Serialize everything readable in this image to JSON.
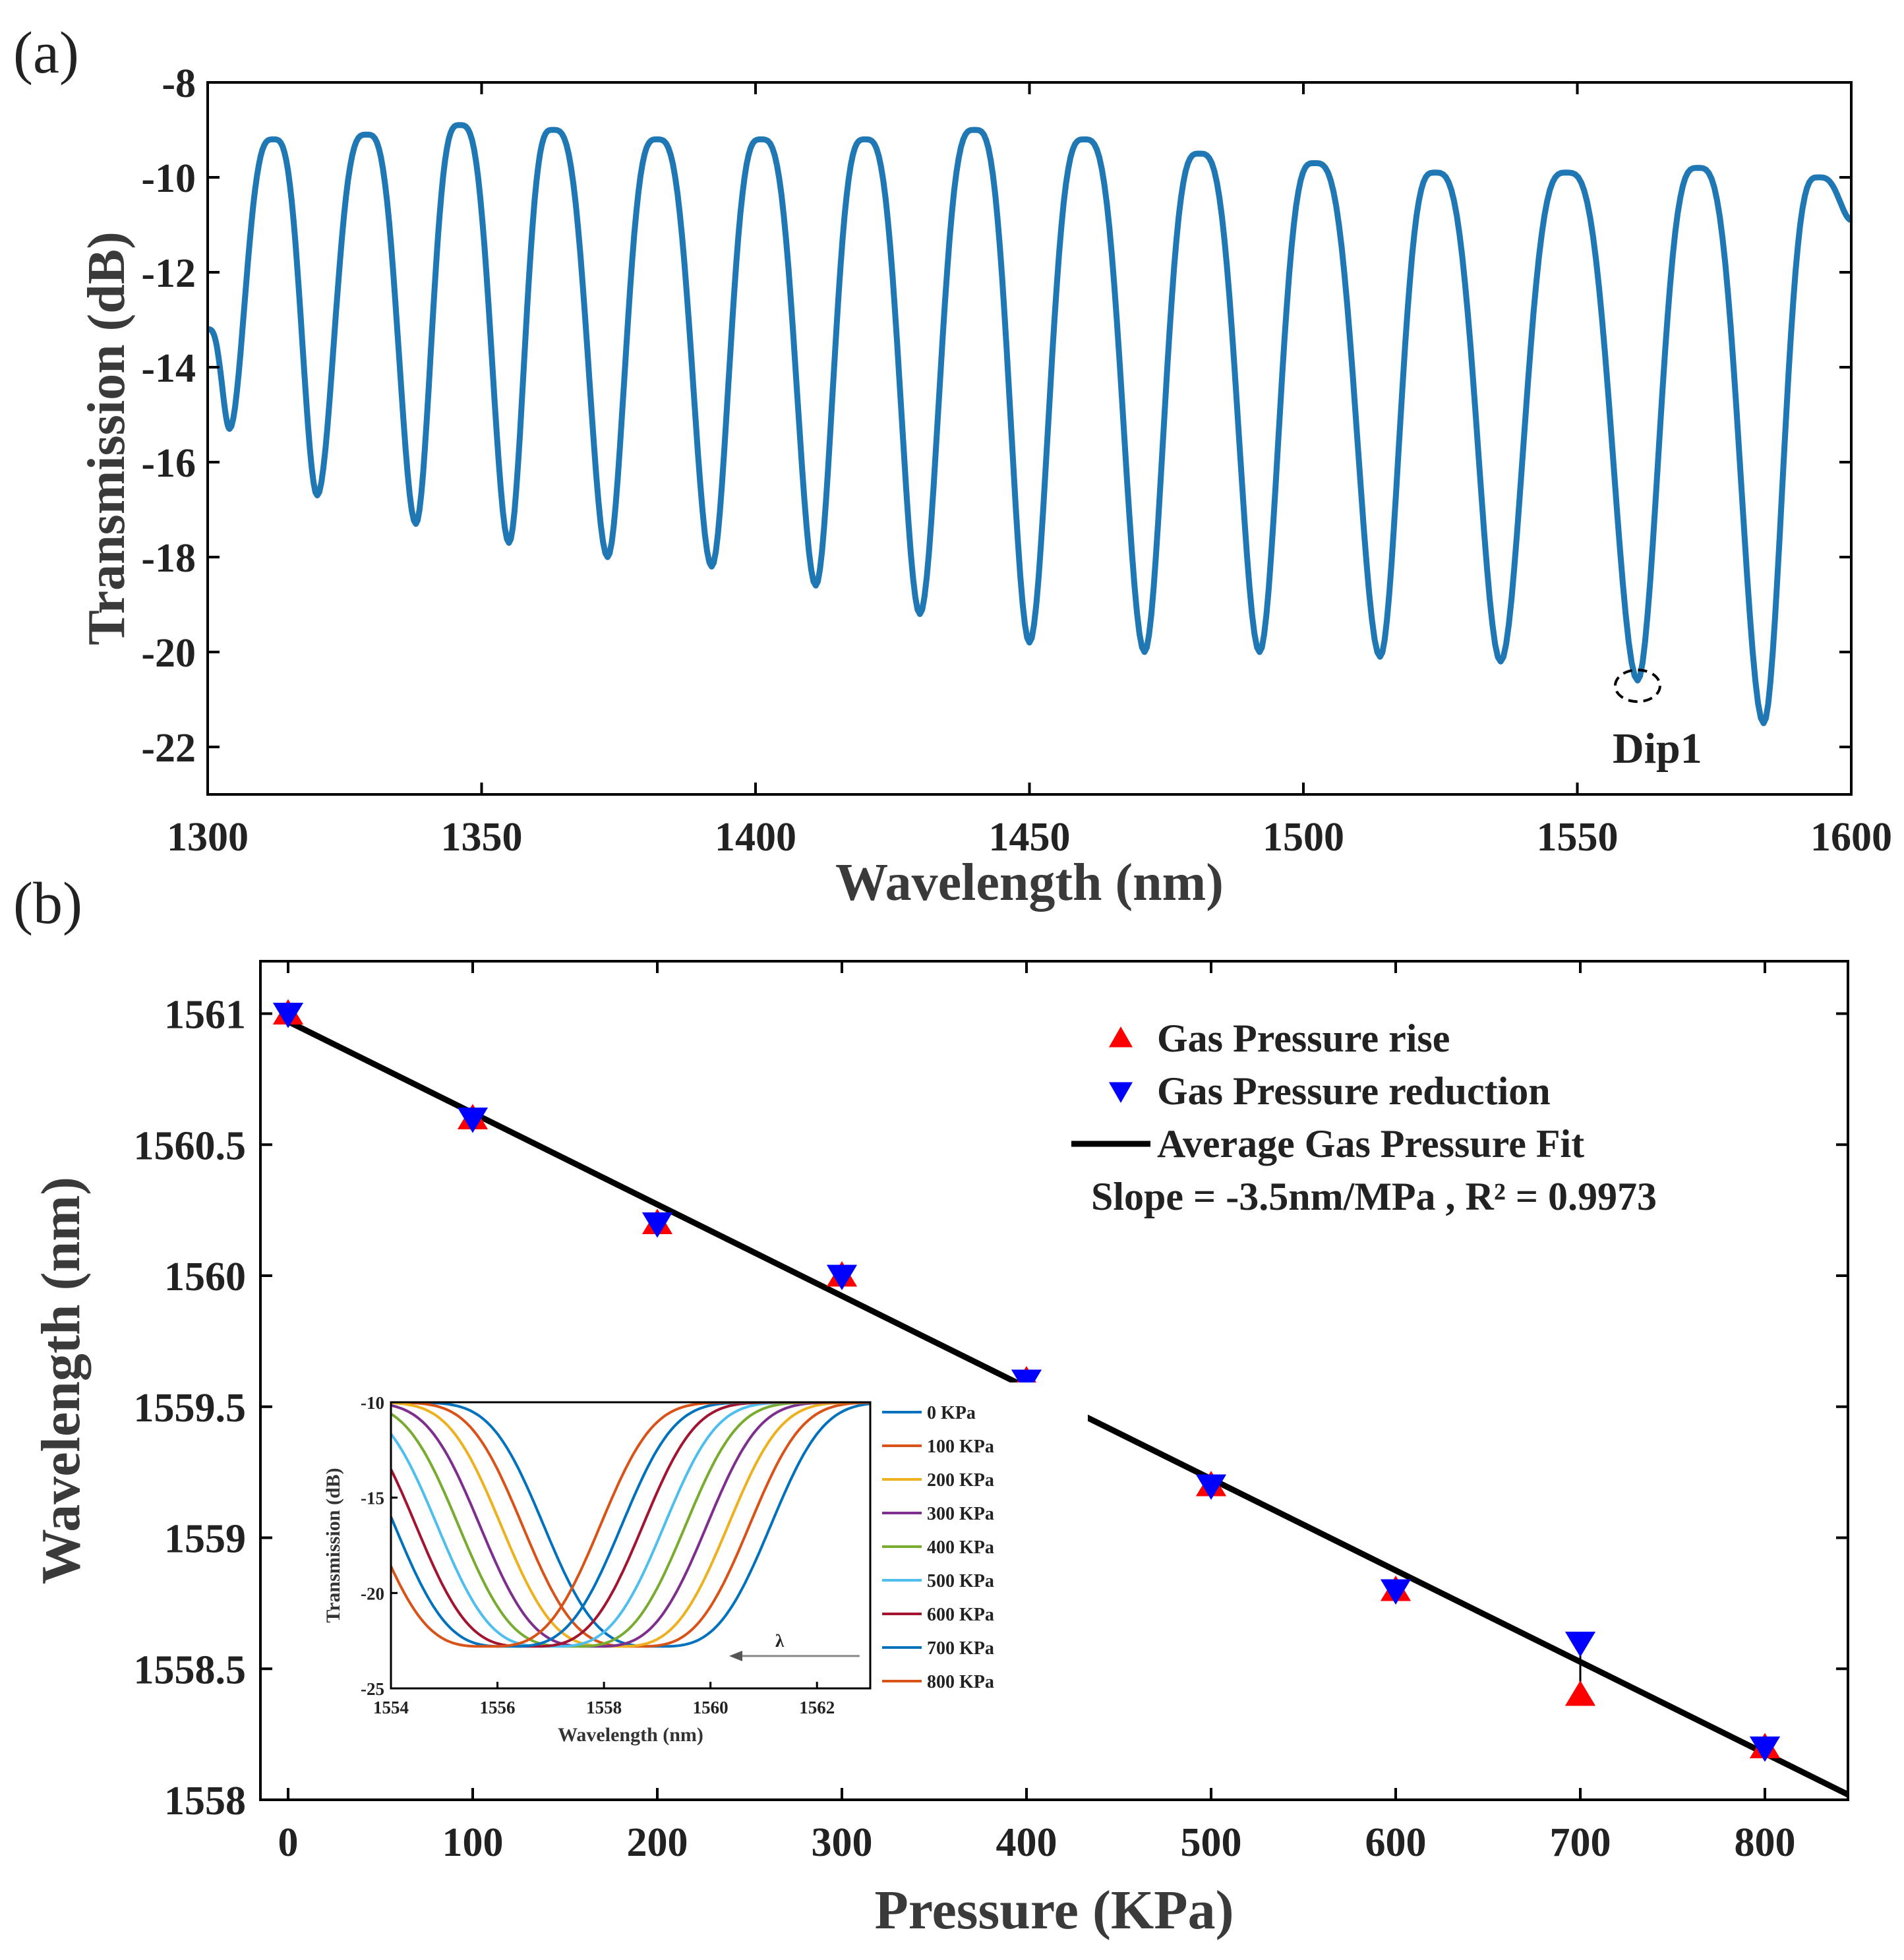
{
  "chart_data": [
    {
      "panel_label": "(a)",
      "type": "line",
      "xlabel": "Wavelength (nm)",
      "ylabel": "Transmission (dB)",
      "xlim": [
        1300,
        1600
      ],
      "ylim": [
        -23,
        -8
      ],
      "xticks": [
        1300,
        1350,
        1400,
        1450,
        1500,
        1550,
        1600
      ],
      "yticks": [
        -22,
        -20,
        -18,
        -16,
        -14,
        -12,
        -10,
        -8
      ],
      "color": "#1f77b4",
      "dips": [
        {
          "x": 1304,
          "y": -15.3
        },
        {
          "x": 1320,
          "y": -16.7
        },
        {
          "x": 1338,
          "y": -17.3
        },
        {
          "x": 1355,
          "y": -17.7
        },
        {
          "x": 1373,
          "y": -18.0
        },
        {
          "x": 1392,
          "y": -18.2
        },
        {
          "x": 1411,
          "y": -18.6
        },
        {
          "x": 1430,
          "y": -19.2
        },
        {
          "x": 1450,
          "y": -19.8
        },
        {
          "x": 1471,
          "y": -20.0
        },
        {
          "x": 1492,
          "y": -20.0
        },
        {
          "x": 1514,
          "y": -20.1
        },
        {
          "x": 1536,
          "y": -20.2
        },
        {
          "x": 1561,
          "y": -20.6
        },
        {
          "x": 1584,
          "y": -21.5
        }
      ],
      "peaks": [
        {
          "x": 1312,
          "y": -9.2
        },
        {
          "x": 1329,
          "y": -9.1
        },
        {
          "x": 1346,
          "y": -8.9
        },
        {
          "x": 1363,
          "y": -9.0
        },
        {
          "x": 1382,
          "y": -9.2
        },
        {
          "x": 1401,
          "y": -9.2
        },
        {
          "x": 1420,
          "y": -9.2
        },
        {
          "x": 1440,
          "y": -9.0
        },
        {
          "x": 1460,
          "y": -9.2
        },
        {
          "x": 1481,
          "y": -9.5
        },
        {
          "x": 1502,
          "y": -9.7
        },
        {
          "x": 1524,
          "y": -9.9
        },
        {
          "x": 1548,
          "y": -9.9
        },
        {
          "x": 1572,
          "y": -9.8
        },
        {
          "x": 1594,
          "y": -10.0
        }
      ],
      "end": {
        "x": 1600,
        "y": -10.9
      },
      "start": {
        "x": 1300,
        "y": -13.2
      },
      "annotation": {
        "label": "Dip1",
        "x": 1561,
        "y": -20.6
      }
    },
    {
      "panel_label": "(b)",
      "type": "scatter",
      "xlabel": "Pressure (KPa)",
      "ylabel": "Wavelength (nm)",
      "xlim": [
        -15,
        845
      ],
      "ylim": [
        1558,
        1561.2
      ],
      "xticks": [
        0,
        100,
        200,
        300,
        400,
        500,
        600,
        700,
        800
      ],
      "yticks": [
        1558,
        1558.5,
        1559,
        1559.5,
        1560,
        1560.5,
        1561
      ],
      "ytick_labels": [
        "1558",
        "1558.5",
        "1559",
        "1559.5",
        "1560",
        "1560.5",
        "1561"
      ],
      "x": [
        0,
        100,
        200,
        300,
        400,
        500,
        600,
        700,
        800
      ],
      "series": [
        {
          "name": "Gas Pressure rise",
          "marker": "triangle-up",
          "color": "#ff0000",
          "values": [
            1561.0,
            1560.6,
            1560.2,
            1560.0,
            1559.6,
            1559.2,
            1558.8,
            1558.4,
            1558.2
          ]
        },
        {
          "name": "Gas Pressure reduction",
          "marker": "triangle-down",
          "color": "#0000ff",
          "values": [
            1561.0,
            1560.6,
            1560.2,
            1560.0,
            1559.6,
            1559.2,
            1558.8,
            1558.6,
            1558.2
          ]
        }
      ],
      "fit": {
        "name": "Average Gas Pressure Fit",
        "color": "#000000",
        "x": [
          0,
          845
        ],
        "y": [
          1560.97,
          1558.02
        ]
      },
      "fit_note": "Slope = -3.5nm/MPa , R² = 0.9973",
      "legend_position": "top-right"
    },
    {
      "type": "line",
      "inset_of": "(b)",
      "xlabel": "Wavelength (nm)",
      "ylabel": "Transmission (dB)",
      "xlim": [
        1554,
        1563
      ],
      "ylim": [
        -25,
        -10
      ],
      "xticks": [
        1554,
        1556,
        1558,
        1560,
        1562
      ],
      "yticks": [
        -25,
        -20,
        -15,
        -10
      ],
      "arrow_label": "λ",
      "legend_position": "right",
      "series": [
        {
          "name": "0 KPa",
          "color": "#0072bd",
          "center": 1559.0
        },
        {
          "name": "100 KPa",
          "color": "#d95319",
          "center": 1558.6
        },
        {
          "name": "200 KPa",
          "color": "#edb120",
          "center": 1558.2
        },
        {
          "name": "300 KPa",
          "color": "#7e2f8e",
          "center": 1557.8
        },
        {
          "name": "400 KPa",
          "color": "#77ac30",
          "center": 1557.4
        },
        {
          "name": "500 KPa",
          "color": "#4dbeee",
          "center": 1557.0
        },
        {
          "name": "600 KPa",
          "color": "#a2142f",
          "center": 1556.6
        },
        {
          "name": "700 KPa",
          "color": "#0072bd",
          "center": 1556.2
        },
        {
          "name": "800 KPa",
          "color": "#d95319",
          "center": 1555.8
        }
      ]
    }
  ]
}
